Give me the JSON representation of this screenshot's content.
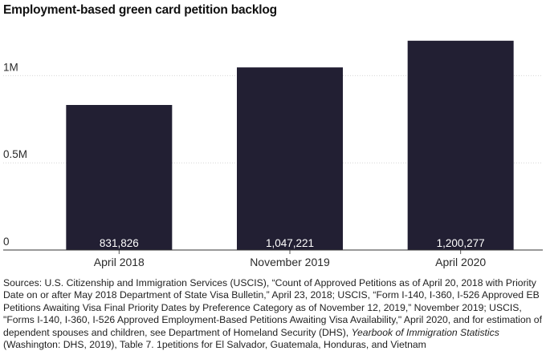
{
  "chart_data": {
    "type": "bar",
    "title": "Employment-based green card petition backlog",
    "categories": [
      "April 2018",
      "November 2019",
      "April 2020"
    ],
    "values": [
      831826,
      1047221,
      1200277
    ],
    "value_labels": [
      "831,826",
      "1,047,221",
      "1,200,277"
    ],
    "yticks": [
      {
        "value": 0,
        "label": "0"
      },
      {
        "value": 500000,
        "label": "0.5M"
      },
      {
        "value": 1000000,
        "label": "1M"
      }
    ],
    "ylim": [
      0,
      1250000
    ],
    "grid": true,
    "bar_color": "#221f33",
    "xlabel": "",
    "ylabel": ""
  },
  "sources": {
    "text_before_italic": "Sources: U.S. Citizenship and Immigration Services (USCIS), “Count of Approved Petitions as of April 20, 2018 with Priority Date on or after May 2018 Department of State Visa Bulletin,” April 23, 2018; USCIS, “Form I-140, I-360, I-526 Approved EB Petitions Awaiting Visa Final Priority Dates by Preference Category as of November 12, 2019,” November 2019; USCIS, \"Forms I-140, I-360, I-526 Approved Employment-Based Petitions Awaiting Visa Availability,\" April 2020, and for estimation of dependent spouses and children, see Department of Homeland Security (DHS), ",
    "italic": "Yearbook of Immigration Statistics",
    "text_after_italic": " (Washington: DHS, 2019), Table 7. 1petitions for El Salvador, Guatemala, Honduras, and Vietnam"
  }
}
